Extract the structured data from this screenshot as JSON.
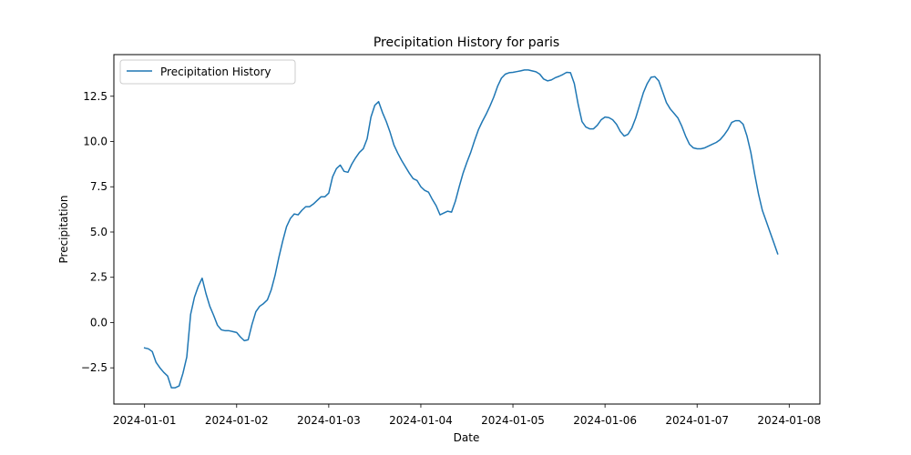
{
  "chart_data": {
    "type": "line",
    "title": "Precipitation History for paris",
    "xlabel": "Date",
    "ylabel": "Precipitation",
    "xlim": [
      "2024-01-00T16:00",
      "2024-01-08T08:00"
    ],
    "ylim": [
      -4.5,
      14.8
    ],
    "x_ticks": [
      "2024-01-01",
      "2024-01-02",
      "2024-01-03",
      "2024-01-04",
      "2024-01-05",
      "2024-01-06",
      "2024-01-07",
      "2024-01-08"
    ],
    "y_ticks": [
      -2.5,
      0.0,
      2.5,
      5.0,
      7.5,
      10.0,
      12.5
    ],
    "y_tick_labels": [
      "−2.5",
      "0.0",
      "2.5",
      "5.0",
      "7.5",
      "10.0",
      "12.5"
    ],
    "grid": false,
    "legend_position": "top-left",
    "series": [
      {
        "name": "Precipitation History",
        "color": "#1f77b4",
        "x_start": "2024-01-01T00:00",
        "interval_hours": 1,
        "values": [
          -1.4,
          -1.45,
          -1.6,
          -2.2,
          -2.5,
          -2.75,
          -2.95,
          -3.6,
          -3.6,
          -3.5,
          -2.8,
          -1.9,
          0.45,
          1.4,
          2.0,
          2.45,
          1.6,
          0.9,
          0.4,
          -0.15,
          -0.4,
          -0.45,
          -0.45,
          -0.5,
          -0.55,
          -0.8,
          -1.0,
          -0.95,
          -0.1,
          0.6,
          0.9,
          1.05,
          1.25,
          1.8,
          2.6,
          3.6,
          4.5,
          5.3,
          5.75,
          6.0,
          5.95,
          6.2,
          6.4,
          6.4,
          6.55,
          6.75,
          6.95,
          6.95,
          7.15,
          8.05,
          8.5,
          8.7,
          8.35,
          8.3,
          8.75,
          9.1,
          9.4,
          9.6,
          10.15,
          11.35,
          12.0,
          12.2,
          11.6,
          11.1,
          10.5,
          9.8,
          9.35,
          8.95,
          8.6,
          8.25,
          7.95,
          7.85,
          7.5,
          7.3,
          7.2,
          6.8,
          6.45,
          5.95,
          6.05,
          6.15,
          6.1,
          6.7,
          7.5,
          8.25,
          8.85,
          9.4,
          10.05,
          10.65,
          11.1,
          11.5,
          11.95,
          12.45,
          13.05,
          13.5,
          13.72,
          13.8,
          13.82,
          13.86,
          13.9,
          13.95,
          13.95,
          13.9,
          13.85,
          13.72,
          13.45,
          13.35,
          13.4,
          13.52,
          13.6,
          13.7,
          13.82,
          13.8,
          13.2,
          12.05,
          11.1,
          10.8,
          10.7,
          10.7,
          10.9,
          11.2,
          11.35,
          11.32,
          11.2,
          10.95,
          10.55,
          10.3,
          10.4,
          10.75,
          11.3,
          12.0,
          12.7,
          13.2,
          13.55,
          13.58,
          13.35,
          12.75,
          12.15,
          11.8,
          11.55,
          11.3,
          10.85,
          10.3,
          9.85,
          9.65,
          9.6,
          9.6,
          9.65,
          9.75,
          9.85,
          9.95,
          10.1,
          10.35,
          10.65,
          11.05,
          11.15,
          11.15,
          10.95,
          10.3,
          9.4,
          8.2,
          7.1,
          6.2,
          5.6,
          5.0,
          4.4,
          3.8
        ]
      }
    ]
  }
}
